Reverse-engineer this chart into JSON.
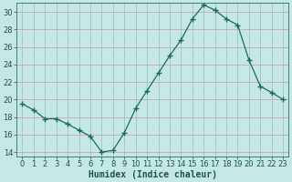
{
  "x": [
    0,
    1,
    2,
    3,
    4,
    5,
    6,
    7,
    8,
    9,
    10,
    11,
    12,
    13,
    14,
    15,
    16,
    17,
    18,
    19,
    20,
    21,
    22,
    23
  ],
  "y": [
    19.5,
    18.8,
    17.8,
    17.8,
    17.2,
    16.5,
    15.8,
    14.0,
    14.2,
    16.2,
    19.0,
    21.0,
    23.0,
    25.0,
    26.8,
    29.2,
    30.8,
    30.2,
    29.2,
    28.5,
    24.5,
    21.5,
    20.8,
    20.0
  ],
  "line_color": "#1a6b5e",
  "marker": "+",
  "marker_size": 4,
  "bg_color": "#c5e8e5",
  "grid_h_color": "#d4959595",
  "grid_v_color": "#90c0bc",
  "xlabel": "Humidex (Indice chaleur)",
  "ylim": [
    13.5,
    31.0
  ],
  "xlim": [
    -0.5,
    23.5
  ],
  "yticks": [
    14,
    16,
    18,
    20,
    22,
    24,
    26,
    28,
    30
  ],
  "xticks": [
    0,
    1,
    2,
    3,
    4,
    5,
    6,
    7,
    8,
    9,
    10,
    11,
    12,
    13,
    14,
    15,
    16,
    17,
    18,
    19,
    20,
    21,
    22,
    23
  ],
  "xlabel_fontsize": 7.0,
  "tick_fontsize": 6.0,
  "tick_color": "#1a5550"
}
